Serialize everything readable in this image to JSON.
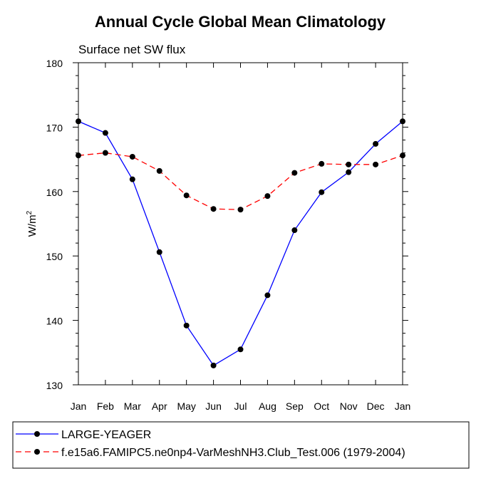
{
  "chart_data": {
    "type": "line",
    "title": "Annual Cycle Global Mean Climatology",
    "subtitle": "Surface net SW flux",
    "ylabel": "W/m",
    "ylabel_superscript": "2",
    "ylim": [
      130,
      180
    ],
    "yticks": [
      130,
      140,
      150,
      160,
      170,
      180
    ],
    "categories": [
      "Jan",
      "Feb",
      "Mar",
      "Apr",
      "May",
      "Jun",
      "Jul",
      "Aug",
      "Sep",
      "Oct",
      "Nov",
      "Dec",
      "Jan"
    ],
    "series": [
      {
        "name": "LARGE-YEAGER",
        "color": "#0000ff",
        "line_style": "solid",
        "values": [
          170.9,
          169.1,
          161.9,
          150.6,
          139.2,
          133.0,
          135.5,
          143.9,
          154.0,
          159.9,
          163.0,
          167.4,
          170.9
        ]
      },
      {
        "name": "f.e15a6.FAMIPC5.ne0np4-VarMeshNH3.Club_Test.006 (1979-2004)",
        "color": "#ff0000",
        "line_style": "dashed",
        "values": [
          165.6,
          166.0,
          165.4,
          163.2,
          159.4,
          157.3,
          157.2,
          159.3,
          162.9,
          164.3,
          164.2,
          164.2,
          165.6
        ]
      }
    ],
    "grid": false,
    "legend_position": "bottom"
  }
}
